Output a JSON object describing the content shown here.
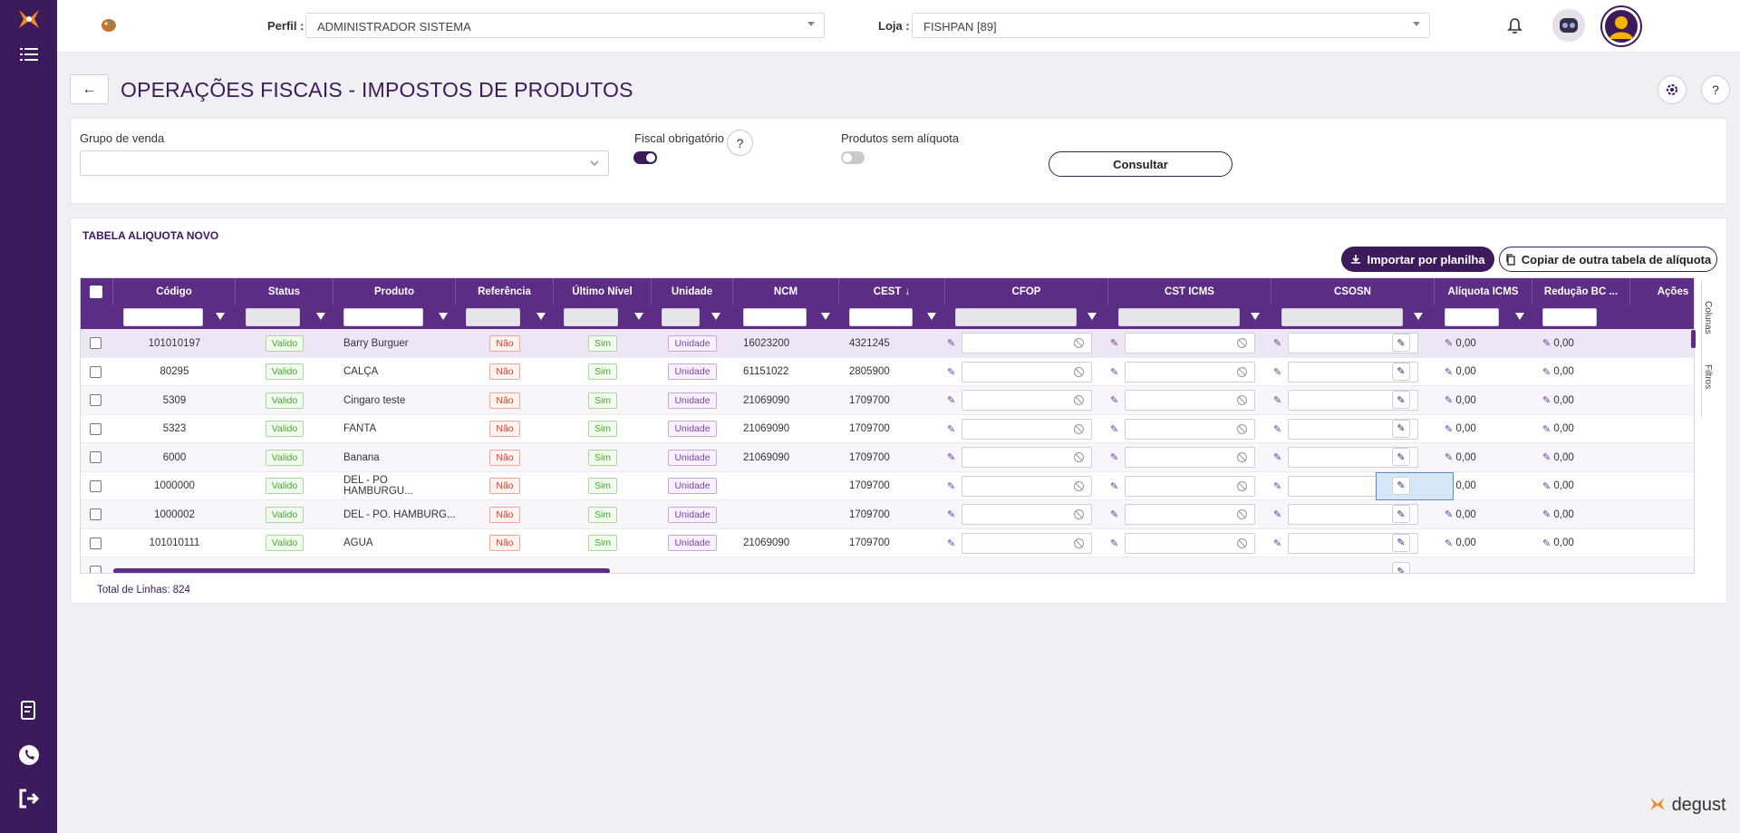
{
  "topbar": {
    "perfil_label": "Perfil :",
    "perfil_value": "ADMINISTRADOR SISTEMA",
    "loja_label": "Loja :",
    "loja_value": "FISHPAN [89]"
  },
  "page": {
    "title": "OPERAÇÕES FISCAIS - IMPOSTOS DE PRODUTOS"
  },
  "filters": {
    "grupo_label": "Grupo de venda",
    "fiscal_label": "Fiscal obrigatório",
    "fiscal_on": true,
    "sem_aliquota_label": "Produtos sem alíquota",
    "sem_aliquota_on": false,
    "help": "?",
    "consultar": "Consultar"
  },
  "table_card": {
    "title": "TABELA ALIQUOTA NOVO",
    "import_button": "Importar por planilha",
    "copy_button": "Copiar de outra tabela de alíquota",
    "side_tab_columns": "Colunas",
    "side_tab_filters": "Filtros",
    "total_label": "Total de Linhas: 824"
  },
  "columns": [
    "Código",
    "Status",
    "Produto",
    "Referência",
    "Último Nível",
    "Unidade",
    "NCM",
    "CEST",
    "CFOP",
    "CST ICMS",
    "CSOSN",
    "Alíquota ICMS",
    "Redução BC ...",
    "Ações"
  ],
  "rows": [
    {
      "codigo": "101010197",
      "status": "Valido",
      "produto": "Barry Burguer",
      "referencia": "Não",
      "ultimo": "Sim",
      "unidade": "Unidade",
      "ncm": "16023200",
      "cest": "4321245",
      "aliq": "0,00",
      "red": "0,00"
    },
    {
      "codigo": "80295",
      "status": "Valido",
      "produto": "CALÇA",
      "referencia": "Não",
      "ultimo": "Sim",
      "unidade": "Unidade",
      "ncm": "61151022",
      "cest": "2805900",
      "aliq": "0,00",
      "red": "0,00"
    },
    {
      "codigo": "5309",
      "status": "Valido",
      "produto": "Cingaro teste",
      "referencia": "Não",
      "ultimo": "Sim",
      "unidade": "Unidade",
      "ncm": "21069090",
      "cest": "1709700",
      "aliq": "0,00",
      "red": "0,00"
    },
    {
      "codigo": "5323",
      "status": "Valido",
      "produto": "FANTA",
      "referencia": "Não",
      "ultimo": "Sim",
      "unidade": "Unidade",
      "ncm": "21069090",
      "cest": "1709700",
      "aliq": "0,00",
      "red": "0,00"
    },
    {
      "codigo": "6000",
      "status": "Valido",
      "produto": "Banana",
      "referencia": "Não",
      "ultimo": "Sim",
      "unidade": "Unidade",
      "ncm": "21069090",
      "cest": "1709700",
      "aliq": "0,00",
      "red": "0,00"
    },
    {
      "codigo": "1000000",
      "status": "Valido",
      "produto": "DEL - PO HAMBURGU...",
      "referencia": "Não",
      "ultimo": "Sim",
      "unidade": "Unidade",
      "ncm": "",
      "cest": "1709700",
      "aliq": "0,00",
      "red": "0,00"
    },
    {
      "codigo": "1000002",
      "status": "Valido",
      "produto": "DEL - PO. HAMBURG...",
      "referencia": "Não",
      "ultimo": "Sim",
      "unidade": "Unidade",
      "ncm": "",
      "cest": "1709700",
      "aliq": "0,00",
      "red": "0,00"
    },
    {
      "codigo": "101010111",
      "status": "Valido",
      "produto": "AGUA",
      "referencia": "Não",
      "ultimo": "Sim",
      "unidade": "Unidade",
      "ncm": "21069090",
      "cest": "1709700",
      "aliq": "0,00",
      "red": "0,00"
    }
  ],
  "brand": "degust",
  "colors": {
    "primary": "#3d1a5b",
    "header": "#5b2d84",
    "valid": "#4aa52e",
    "no": "#d9402b"
  }
}
